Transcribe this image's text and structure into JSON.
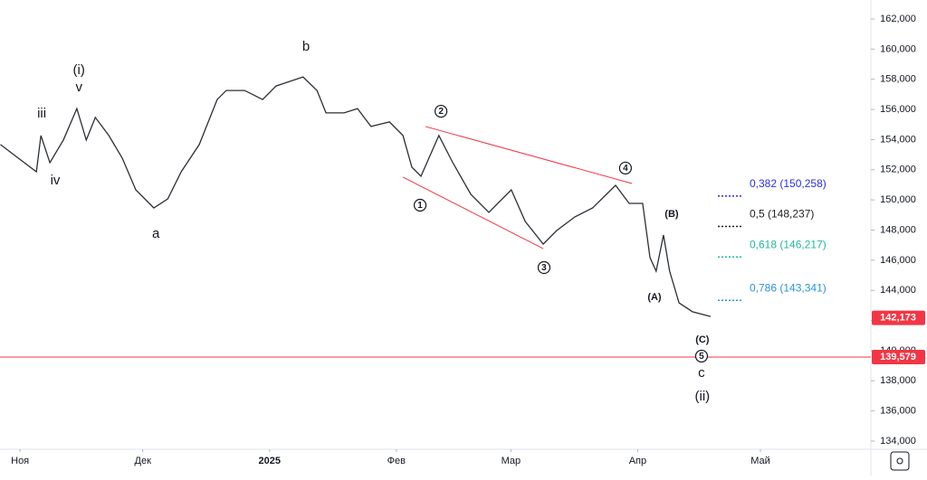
{
  "chart_data": {
    "type": "line",
    "x": [
      -4.8,
      -0.4,
      4.0,
      5.1,
      7.3,
      10.6,
      13.9,
      16.2,
      18.4,
      21.7,
      25.0,
      28.3,
      32.7,
      36.1,
      39.4,
      43.8,
      48.2,
      50.4,
      54.9,
      59.3,
      62.6,
      65.9,
      69.2,
      72.6,
      74.8,
      79.2,
      82.5,
      85.8,
      90.3,
      93.6,
      95.8,
      98.0,
      102.4,
      105.8,
      110.2,
      114.6,
      120.1,
      123.5,
      127.9,
      131.2,
      135.6,
      140.0,
      145.6,
      148.9,
      152.2,
      154.0,
      155.5,
      157.3,
      158.8,
      161.1,
      164.4,
      168.8
    ],
    "series": [
      {
        "color": "#2b2f36",
        "values": [
          153.67,
          152.77,
          151.87,
          154.27,
          152.47,
          153.97,
          156.06,
          153.97,
          155.47,
          154.27,
          152.77,
          150.67,
          149.47,
          150.07,
          151.87,
          153.67,
          156.66,
          157.26,
          157.26,
          156.66,
          157.56,
          157.86,
          158.16,
          157.26,
          155.77,
          155.77,
          156.06,
          154.87,
          155.17,
          154.27,
          152.17,
          151.57,
          154.27,
          152.47,
          150.37,
          149.17,
          150.67,
          148.57,
          147.07,
          147.97,
          148.87,
          149.47,
          150.97,
          149.77,
          149.77,
          146.18,
          145.27,
          147.67,
          145.27,
          143.17,
          142.58,
          142.27
        ]
      }
    ],
    "xlim": [
      -4.9,
      208
    ],
    "xticks": [
      {
        "value": 0,
        "label": "Ноя"
      },
      {
        "value": 30,
        "label": "Дек"
      },
      {
        "value": 61,
        "label": "2025"
      },
      {
        "value": 92,
        "label": "Фев"
      },
      {
        "value": 120,
        "label": "Мар"
      },
      {
        "value": 151,
        "label": "Апр"
      },
      {
        "value": 181,
        "label": "Май"
      }
    ],
    "ylim": [
      133.46,
      163.26
    ],
    "yticks": [
      {
        "value": 134,
        "label": "134,000"
      },
      {
        "value": 136,
        "label": "136,000"
      },
      {
        "value": 138,
        "label": "138,000"
      },
      {
        "value": 140,
        "label": "140,000"
      },
      {
        "value": 142,
        "label": "142,000"
      },
      {
        "value": 144,
        "label": "144,000"
      },
      {
        "value": 146,
        "label": "146,000"
      },
      {
        "value": 148,
        "label": "148,000"
      },
      {
        "value": 150,
        "label": "150,000"
      },
      {
        "value": 152,
        "label": "152,000"
      },
      {
        "value": 154,
        "label": "154,000"
      },
      {
        "value": 156,
        "label": "156,000"
      },
      {
        "value": 158,
        "label": "158,000"
      },
      {
        "value": 160,
        "label": "160,000"
      },
      {
        "value": 162,
        "label": "162,000"
      }
    ],
    "grid": false,
    "annotations": [
      {
        "text": "(i)",
        "x": 14.4,
        "y": 158.58,
        "circled": false
      },
      {
        "text": "v",
        "x": 14.4,
        "y": 157.44,
        "circled": false
      },
      {
        "text": "iii",
        "x": 5.3,
        "y": 155.71,
        "circled": false
      },
      {
        "text": "iv",
        "x": 8.6,
        "y": 151.27,
        "circled": false
      },
      {
        "text": "a",
        "x": 33.2,
        "y": 147.73,
        "circled": false
      },
      {
        "text": "b",
        "x": 69.9,
        "y": 160.14,
        "circled": false
      },
      {
        "text": "1",
        "x": 97.8,
        "y": 149.65,
        "circled": true
      },
      {
        "text": "2",
        "x": 102.9,
        "y": 155.88,
        "circled": true
      },
      {
        "text": "3",
        "x": 128.1,
        "y": 145.51,
        "circled": true
      },
      {
        "text": "4",
        "x": 148.0,
        "y": 152.11,
        "circled": true
      },
      {
        "text": "(A)",
        "x": 155.1,
        "y": 143.53,
        "circled": false
      },
      {
        "text": "(B)",
        "x": 159.3,
        "y": 149.05,
        "circled": false
      },
      {
        "text": "(C)",
        "x": 166.8,
        "y": 140.72,
        "circled": false
      },
      {
        "text": "5",
        "x": 166.6,
        "y": 139.64,
        "circled": true
      },
      {
        "text": "c",
        "x": 166.6,
        "y": 138.5,
        "circled": false
      },
      {
        "text": "(ii)",
        "x": 166.8,
        "y": 136.94,
        "circled": false
      }
    ],
    "trendlines": [
      {
        "x": [
          99.1,
          149.6
        ],
        "y": [
          154.87,
          151.09
        ],
        "color": "#f23645"
      },
      {
        "x": [
          93.6,
          127.9
        ],
        "y": [
          151.51,
          146.77
        ],
        "color": "#f23645"
      }
    ],
    "fib_levels": [
      {
        "label": "0,382 (150,258)",
        "value": 150.258,
        "color": "#2a2ee6"
      },
      {
        "label": "0,5 (148,237)",
        "value": 148.237,
        "color": "#222222"
      },
      {
        "label": "0,618 (146,217)",
        "value": 146.217,
        "color": "#22b8a0"
      },
      {
        "label": "0,786 (143,341)",
        "value": 143.341,
        "color": "#2a94d6"
      }
    ],
    "price_lines": [
      {
        "value": 142.173,
        "label": "142,173",
        "color": "#f23645",
        "line": false
      },
      {
        "value": 139.579,
        "label": "139,579",
        "color": "#f23645",
        "line": true
      }
    ]
  }
}
